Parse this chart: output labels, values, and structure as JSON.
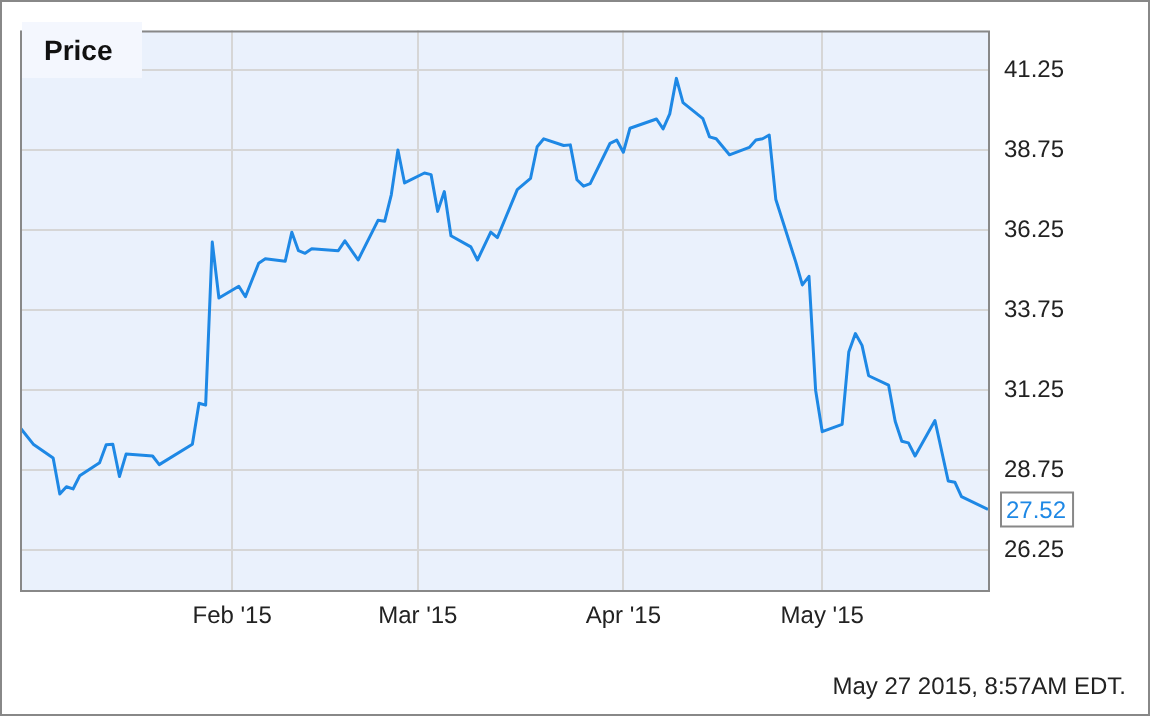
{
  "chart_data": {
    "type": "line",
    "title": "Price",
    "annotations": [
      "May 27 2015, 8:57AM EDT."
    ],
    "x": [
      "2014-12-31",
      "2015-01-02",
      "2015-01-05",
      "2015-01-06",
      "2015-01-07",
      "2015-01-08",
      "2015-01-09",
      "2015-01-12",
      "2015-01-13",
      "2015-01-14",
      "2015-01-15",
      "2015-01-16",
      "2015-01-20",
      "2015-01-21",
      "2015-01-26",
      "2015-01-27",
      "2015-01-28",
      "2015-01-29",
      "2015-01-30",
      "2015-02-02",
      "2015-02-03",
      "2015-02-05",
      "2015-02-06",
      "2015-02-09",
      "2015-02-10",
      "2015-02-11",
      "2015-02-12",
      "2015-02-13",
      "2015-02-17",
      "2015-02-18",
      "2015-02-20",
      "2015-02-23",
      "2015-02-24",
      "2015-02-25",
      "2015-02-26",
      "2015-02-27",
      "2015-03-02",
      "2015-03-03",
      "2015-03-04",
      "2015-03-05",
      "2015-03-06",
      "2015-03-09",
      "2015-03-10",
      "2015-03-12",
      "2015-03-13",
      "2015-03-16",
      "2015-03-18",
      "2015-03-19",
      "2015-03-20",
      "2015-03-23",
      "2015-03-24",
      "2015-03-25",
      "2015-03-26",
      "2015-03-27",
      "2015-03-30",
      "2015-03-31",
      "2015-04-01",
      "2015-04-02",
      "2015-04-06",
      "2015-04-07",
      "2015-04-08",
      "2015-04-09",
      "2015-04-10",
      "2015-04-13",
      "2015-04-14",
      "2015-04-15",
      "2015-04-17",
      "2015-04-20",
      "2015-04-21",
      "2015-04-22",
      "2015-04-23",
      "2015-04-24",
      "2015-04-27",
      "2015-04-28",
      "2015-04-29",
      "2015-04-30",
      "2015-05-01",
      "2015-05-04",
      "2015-05-05",
      "2015-05-06",
      "2015-05-07",
      "2015-05-08",
      "2015-05-11",
      "2015-05-12",
      "2015-05-13",
      "2015-05-14",
      "2015-05-15",
      "2015-05-18",
      "2015-05-20",
      "2015-05-21",
      "2015-05-22",
      "2015-05-26"
    ],
    "series": [
      {
        "color": "#1e88e5",
        "values": [
          30.08,
          29.56,
          29.13,
          28.0,
          28.23,
          28.16,
          28.57,
          28.98,
          29.54,
          29.56,
          28.55,
          29.25,
          29.19,
          28.92,
          29.56,
          30.84,
          30.78,
          35.88,
          34.13,
          34.5,
          34.17,
          35.22,
          35.36,
          35.28,
          36.19,
          35.61,
          35.53,
          35.67,
          35.61,
          35.92,
          35.32,
          36.56,
          36.53,
          37.36,
          38.76,
          37.73,
          38.04,
          37.99,
          36.84,
          37.46,
          36.08,
          35.73,
          35.32,
          36.19,
          36.02,
          37.52,
          37.87,
          38.86,
          39.11,
          38.9,
          38.92,
          37.83,
          37.63,
          37.71,
          38.97,
          39.07,
          38.69,
          39.44,
          39.73,
          39.42,
          39.89,
          41.0,
          40.24,
          39.74,
          39.17,
          39.11,
          38.61,
          38.84,
          39.07,
          39.11,
          39.23,
          37.21,
          35.26,
          34.54,
          34.81,
          31.25,
          29.95,
          30.18,
          32.44,
          33.02,
          32.65,
          31.7,
          31.41,
          30.28,
          29.65,
          29.6,
          29.19,
          30.3,
          28.41,
          28.37,
          27.92,
          27.52
        ],
        "value_labels": [
          null,
          null,
          null,
          null,
          null,
          null,
          null,
          null,
          null,
          null,
          null,
          null,
          null,
          null,
          null,
          null,
          null,
          null,
          null,
          null,
          null,
          null,
          null,
          null,
          null,
          null,
          null,
          null,
          null,
          null,
          null,
          null,
          null,
          null,
          null,
          null,
          null,
          null,
          null,
          null,
          null,
          null,
          null,
          null,
          null,
          null,
          null,
          null,
          null,
          null,
          null,
          null,
          null,
          null,
          null,
          null,
          null,
          null,
          null,
          null,
          null,
          null,
          null,
          null,
          null,
          null,
          null,
          null,
          null,
          null,
          null,
          null,
          null,
          null,
          null,
          null,
          null,
          null,
          null,
          null,
          null,
          null,
          null,
          null,
          null,
          null,
          null,
          null,
          null,
          null,
          null,
          "27.52"
        ]
      }
    ],
    "xlim": [
      "2014-12-31",
      "2015-05-26"
    ],
    "xticks": [
      {
        "value": "2015-02-01",
        "label": "Feb '15"
      },
      {
        "value": "2015-03-01",
        "label": "Mar '15"
      },
      {
        "value": "2015-04-01",
        "label": "Apr '15"
      },
      {
        "value": "2015-05-01",
        "label": "May '15"
      }
    ],
    "ylim": [
      25,
      42.5
    ],
    "yticks": [
      26.25,
      28.75,
      31.25,
      33.75,
      36.25,
      38.75,
      41.25
    ],
    "grid": true,
    "marker": "none",
    "line_style": "solid",
    "legend": false
  }
}
